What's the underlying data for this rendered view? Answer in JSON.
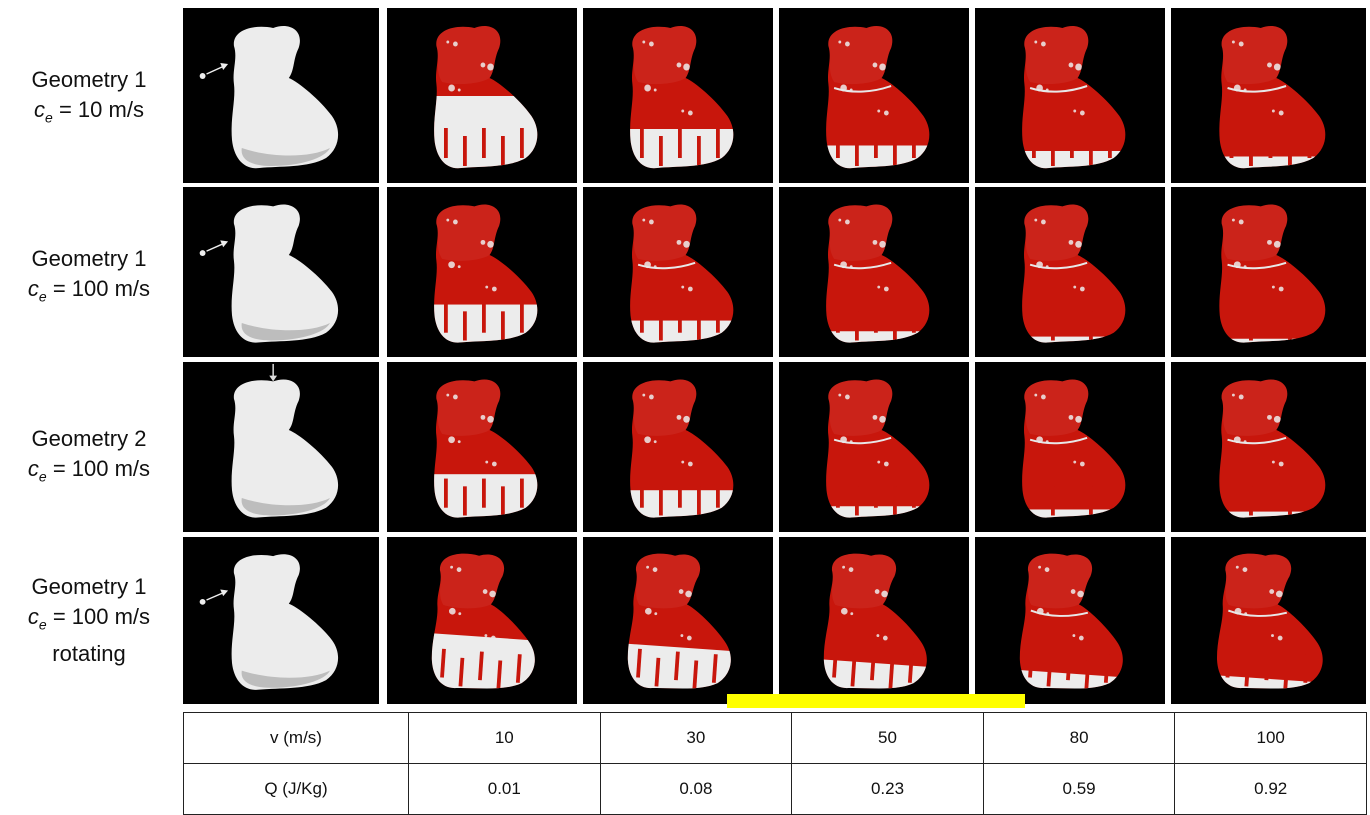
{
  "rows": [
    {
      "line1": "Geometry 1",
      "sym": "c",
      "sub": "e",
      "rest": " = 10 m/s",
      "line3": "",
      "arrow": "side"
    },
    {
      "line1": "Geometry 1",
      "sym": "c",
      "sub": "e",
      "rest": " = 100 m/s",
      "line3": "",
      "arrow": "side"
    },
    {
      "line1": "Geometry 2",
      "sym": "c",
      "sub": "e",
      "rest": " = 100 m/s",
      "line3": "",
      "arrow": "top"
    },
    {
      "line1": "Geometry 1",
      "sym": "c",
      "sub": "e",
      "rest": " = 100 m/s",
      "line3": "rotating",
      "arrow": "side"
    }
  ],
  "coverage": [
    [
      0,
      0.3,
      0.6,
      0.75,
      0.8,
      0.85
    ],
    [
      0,
      0.6,
      0.75,
      0.85,
      0.9,
      0.92
    ],
    [
      0,
      0.55,
      0.7,
      0.85,
      0.88,
      0.9
    ],
    [
      0,
      0.45,
      0.55,
      0.7,
      0.8,
      0.85
    ]
  ],
  "colors": {
    "deposit": "#c8160c",
    "body": "#ececec",
    "background": "#000000",
    "highlight": "#ffff00"
  },
  "table": {
    "v_label": "v (m/s)",
    "v_values": [
      "10",
      "30",
      "50",
      "80",
      "100"
    ],
    "q_label": "Q (J/Kg)",
    "q_values": [
      "0.01",
      "0.08",
      "0.23",
      "0.59",
      "0.92"
    ]
  }
}
